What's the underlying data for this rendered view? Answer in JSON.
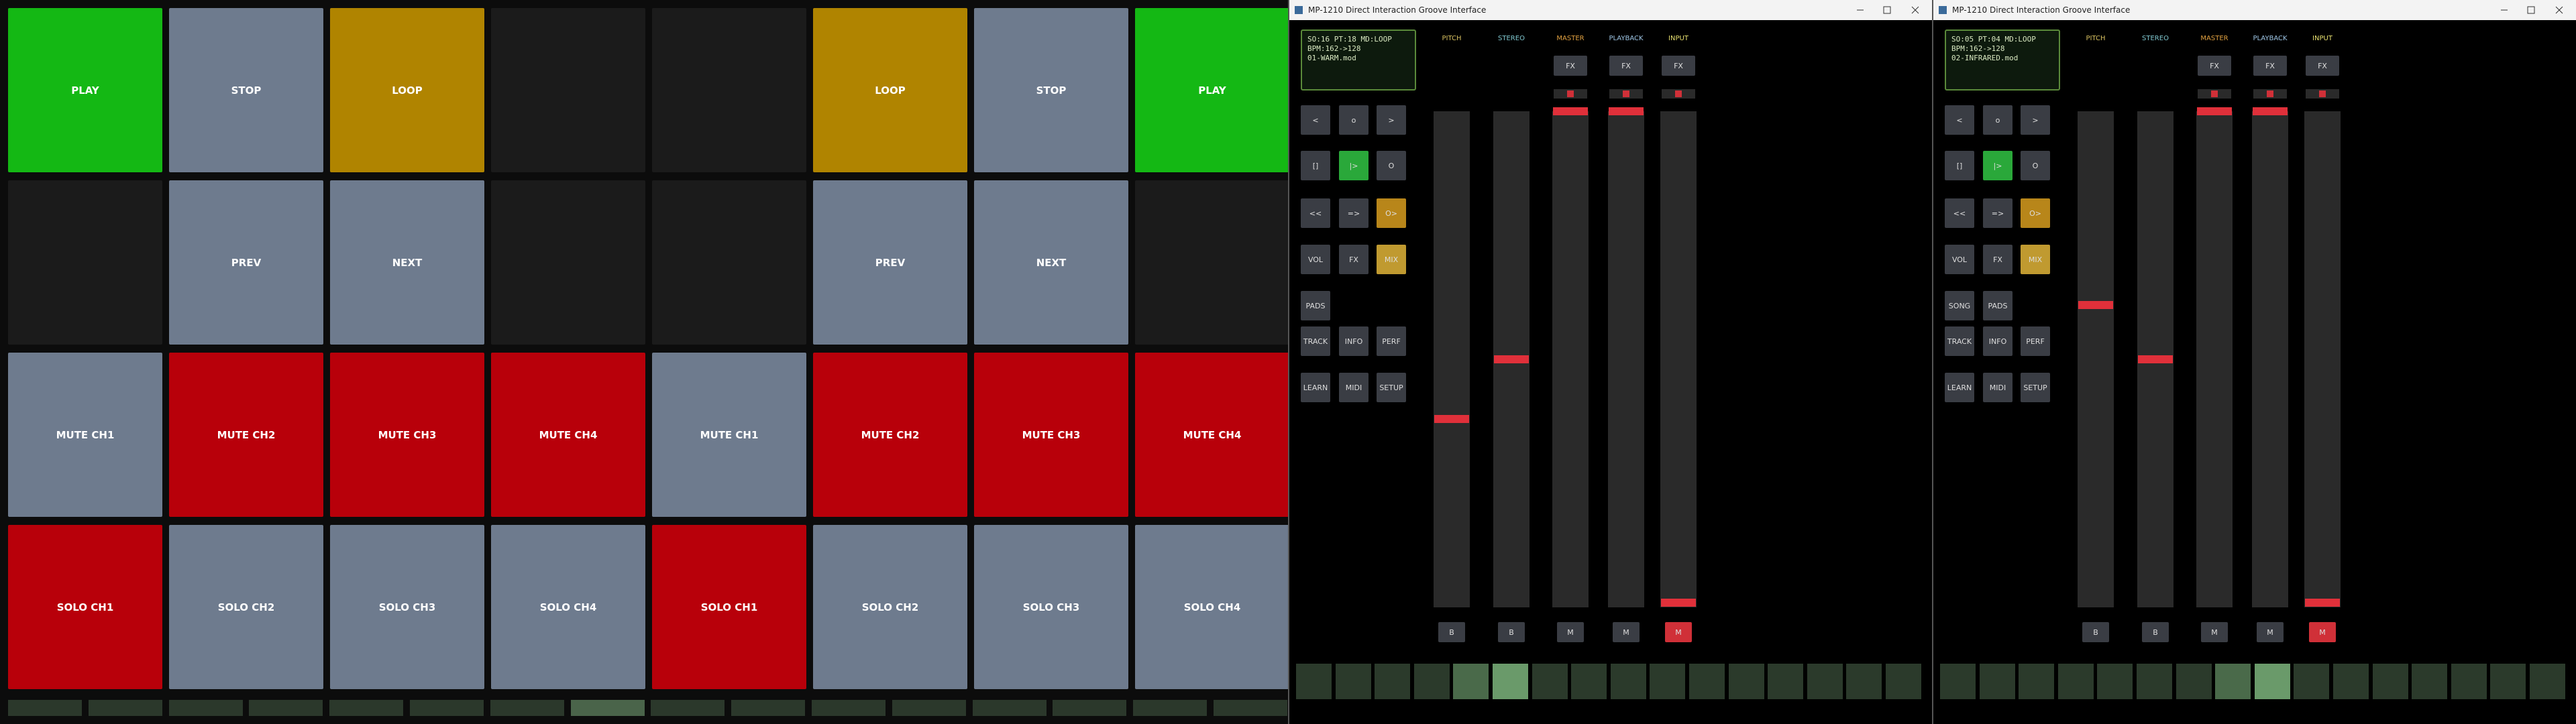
{
  "pads": {
    "rows": [
      [
        {
          "label": "PLAY",
          "color": "#14b814"
        },
        {
          "label": "STOP",
          "color": "#6e7b8e"
        },
        {
          "label": "LOOP",
          "color": "#b08400"
        },
        {
          "color": "#1b1b1b"
        },
        {
          "color": "#1b1b1b"
        },
        {
          "label": "LOOP",
          "color": "#b08400"
        },
        {
          "label": "STOP",
          "color": "#6e7b8e"
        },
        {
          "label": "PLAY",
          "color": "#14b814"
        }
      ],
      [
        {
          "color": "#1b1b1b"
        },
        {
          "label": "PREV",
          "color": "#6e7b8e"
        },
        {
          "label": "NEXT",
          "color": "#6e7b8e"
        },
        {
          "color": "#1b1b1b"
        },
        {
          "color": "#1b1b1b"
        },
        {
          "label": "PREV",
          "color": "#6e7b8e"
        },
        {
          "label": "NEXT",
          "color": "#6e7b8e"
        },
        {
          "color": "#1b1b1b"
        }
      ],
      [
        {
          "label": "MUTE CH1",
          "color": "#6e7b8e"
        },
        {
          "label": "MUTE CH2",
          "color": "#b8000a"
        },
        {
          "label": "MUTE CH3",
          "color": "#b8000a"
        },
        {
          "label": "MUTE CH4",
          "color": "#b8000a"
        },
        {
          "label": "MUTE CH1",
          "color": "#6e7b8e"
        },
        {
          "label": "MUTE CH2",
          "color": "#b8000a"
        },
        {
          "label": "MUTE CH3",
          "color": "#b8000a"
        },
        {
          "label": "MUTE CH4",
          "color": "#b8000a"
        }
      ],
      [
        {
          "label": "SOLO CH1",
          "color": "#b8000a"
        },
        {
          "label": "SOLO CH2",
          "color": "#6e7b8e"
        },
        {
          "label": "SOLO CH3",
          "color": "#6e7b8e"
        },
        {
          "label": "SOLO CH4",
          "color": "#6e7b8e"
        },
        {
          "label": "SOLO CH1",
          "color": "#b8000a"
        },
        {
          "label": "SOLO CH2",
          "color": "#6e7b8e"
        },
        {
          "label": "SOLO CH3",
          "color": "#6e7b8e"
        },
        {
          "label": "SOLO CH4",
          "color": "#6e7b8e"
        }
      ]
    ],
    "strip": [
      "#2b382b",
      "#2b382b",
      "#2b382b",
      "#2b382b",
      "#2b382b",
      "#2b382b",
      "#2b382b",
      "#4a644a",
      "#2b382b",
      "#2b382b",
      "#2b382b",
      "#2b382b",
      "#2b382b",
      "#2b382b",
      "#2b382b",
      "#2b382b"
    ]
  },
  "windows": [
    {
      "title": "MP-1210 Direct Interaction Groove Interface",
      "display": [
        "SO:16 PT:18 MD:LOOP",
        "BPM:162->128",
        "01-WARM.mod"
      ],
      "buttons": [
        [
          {
            "label": "<",
            "color": "#3a3d44"
          },
          {
            "label": "o",
            "color": "#3a3d44"
          },
          {
            "label": ">",
            "color": "#3a3d44"
          }
        ],
        [
          {
            "label": "[]",
            "color": "#3a3d44"
          },
          {
            "label": "|>",
            "color": "#2aa83a"
          },
          {
            "label": "O",
            "color": "#3a3d44"
          }
        ],
        [
          {
            "label": "<<",
            "color": "#3a3d44"
          },
          {
            "label": "=>",
            "color": "#3a3d44"
          },
          {
            "label": "O>",
            "color": "#b8861a"
          }
        ],
        [
          {
            "label": "VOL",
            "color": "#3a3d44"
          },
          {
            "label": "FX",
            "color": "#3a3d44"
          },
          {
            "label": "MIX",
            "color": "#c09a30"
          }
        ],
        [
          {
            "label": "PADS",
            "color": "#3a3d44"
          }
        ],
        [
          {
            "label": "TRACK",
            "color": "#3a3d44"
          },
          {
            "label": "INFO",
            "color": "#3a3d44"
          },
          {
            "label": "PERF",
            "color": "#3a3d44"
          }
        ],
        [
          {
            "label": "LEARN",
            "color": "#3a3d44"
          },
          {
            "label": "MIDI",
            "color": "#3a3d44"
          },
          {
            "label": "SETUP",
            "color": "#3a3d44"
          }
        ]
      ],
      "strips": [
        {
          "name": "PITCH",
          "header_color": "#d8c060",
          "level": 38,
          "button": "B",
          "button_color": "#3a3d44"
        },
        {
          "name": "STEREO",
          "header_color": "#80c8d0",
          "level": 50,
          "button": "B",
          "button_color": "#3a3d44"
        },
        {
          "name": "MASTER",
          "header_color": "#e0a040",
          "fx": "FX",
          "level": 100,
          "button": "M",
          "button_color": "#3a3d44"
        },
        {
          "name": "PLAYBACK",
          "header_color": "#a0c8e8",
          "fx": "FX",
          "level": 100,
          "button": "M",
          "button_color": "#3a3d44"
        },
        {
          "name": "INPUT",
          "header_color": "#e8e070",
          "fx": "FX",
          "level": 1,
          "button": "M",
          "button_color": "#d03038"
        }
      ],
      "steps": [
        "#2b3a2b",
        "#2b3a2b",
        "#2b3a2b",
        "#2b3a2b",
        "#4a6a4a",
        "#6a9a6a",
        "#2b3a2b",
        "#2b3a2b",
        "#2b3a2b",
        "#2b3a2b",
        "#2b3a2b",
        "#2b3a2b",
        "#2b3a2b",
        "#2b3a2b",
        "#2b3a2b",
        "#2b3a2b"
      ]
    },
    {
      "title": "MP-1210 Direct Interaction Groove Interface",
      "display": [
        "SO:05 PT:04 MD:LOOP",
        "BPM:162->128",
        "02-INFRARED.mod"
      ],
      "buttons": [
        [
          {
            "label": "<",
            "color": "#3a3d44"
          },
          {
            "label": "o",
            "color": "#3a3d44"
          },
          {
            "label": ">",
            "color": "#3a3d44"
          }
        ],
        [
          {
            "label": "[]",
            "color": "#3a3d44"
          },
          {
            "label": "|>",
            "color": "#2aa83a"
          },
          {
            "label": "O",
            "color": "#3a3d44"
          }
        ],
        [
          {
            "label": "<<",
            "color": "#3a3d44"
          },
          {
            "label": "=>",
            "color": "#3a3d44"
          },
          {
            "label": "O>",
            "color": "#b8861a"
          }
        ],
        [
          {
            "label": "VOL",
            "color": "#3a3d44"
          },
          {
            "label": "FX",
            "color": "#3a3d44"
          },
          {
            "label": "MIX",
            "color": "#c09a30"
          }
        ],
        [
          {
            "label": "SONG",
            "color": "#3a3d44"
          },
          {
            "label": "PADS",
            "color": "#3a3d44"
          }
        ],
        [
          {
            "label": "TRACK",
            "color": "#3a3d44"
          },
          {
            "label": "INFO",
            "color": "#3a3d44"
          },
          {
            "label": "PERF",
            "color": "#3a3d44"
          }
        ],
        [
          {
            "label": "LEARN",
            "color": "#3a3d44"
          },
          {
            "label": "MIDI",
            "color": "#3a3d44"
          },
          {
            "label": "SETUP",
            "color": "#3a3d44"
          }
        ]
      ],
      "strips": [
        {
          "name": "PITCH",
          "header_color": "#d8c060",
          "level": 61,
          "button": "B",
          "button_color": "#3a3d44"
        },
        {
          "name": "STEREO",
          "header_color": "#80c8d0",
          "level": 50,
          "button": "B",
          "button_color": "#3a3d44"
        },
        {
          "name": "MASTER",
          "header_color": "#e0a040",
          "fx": "FX",
          "level": 100,
          "button": "M",
          "button_color": "#3a3d44"
        },
        {
          "name": "PLAYBACK",
          "header_color": "#a0c8e8",
          "fx": "FX",
          "level": 100,
          "button": "M",
          "button_color": "#3a3d44"
        },
        {
          "name": "INPUT",
          "header_color": "#e8e070",
          "fx": "FX",
          "level": 1,
          "button": "M",
          "button_color": "#d03038"
        }
      ],
      "steps": [
        "#2b3a2b",
        "#2b3a2b",
        "#2b3a2b",
        "#2b3a2b",
        "#2b3a2b",
        "#2b3a2b",
        "#2b3a2b",
        "#4a6a4a",
        "#6a9a6a",
        "#2b3a2b",
        "#2b3a2b",
        "#2b3a2b",
        "#2b3a2b",
        "#2b3a2b",
        "#2b3a2b",
        "#2b3a2b"
      ]
    }
  ]
}
